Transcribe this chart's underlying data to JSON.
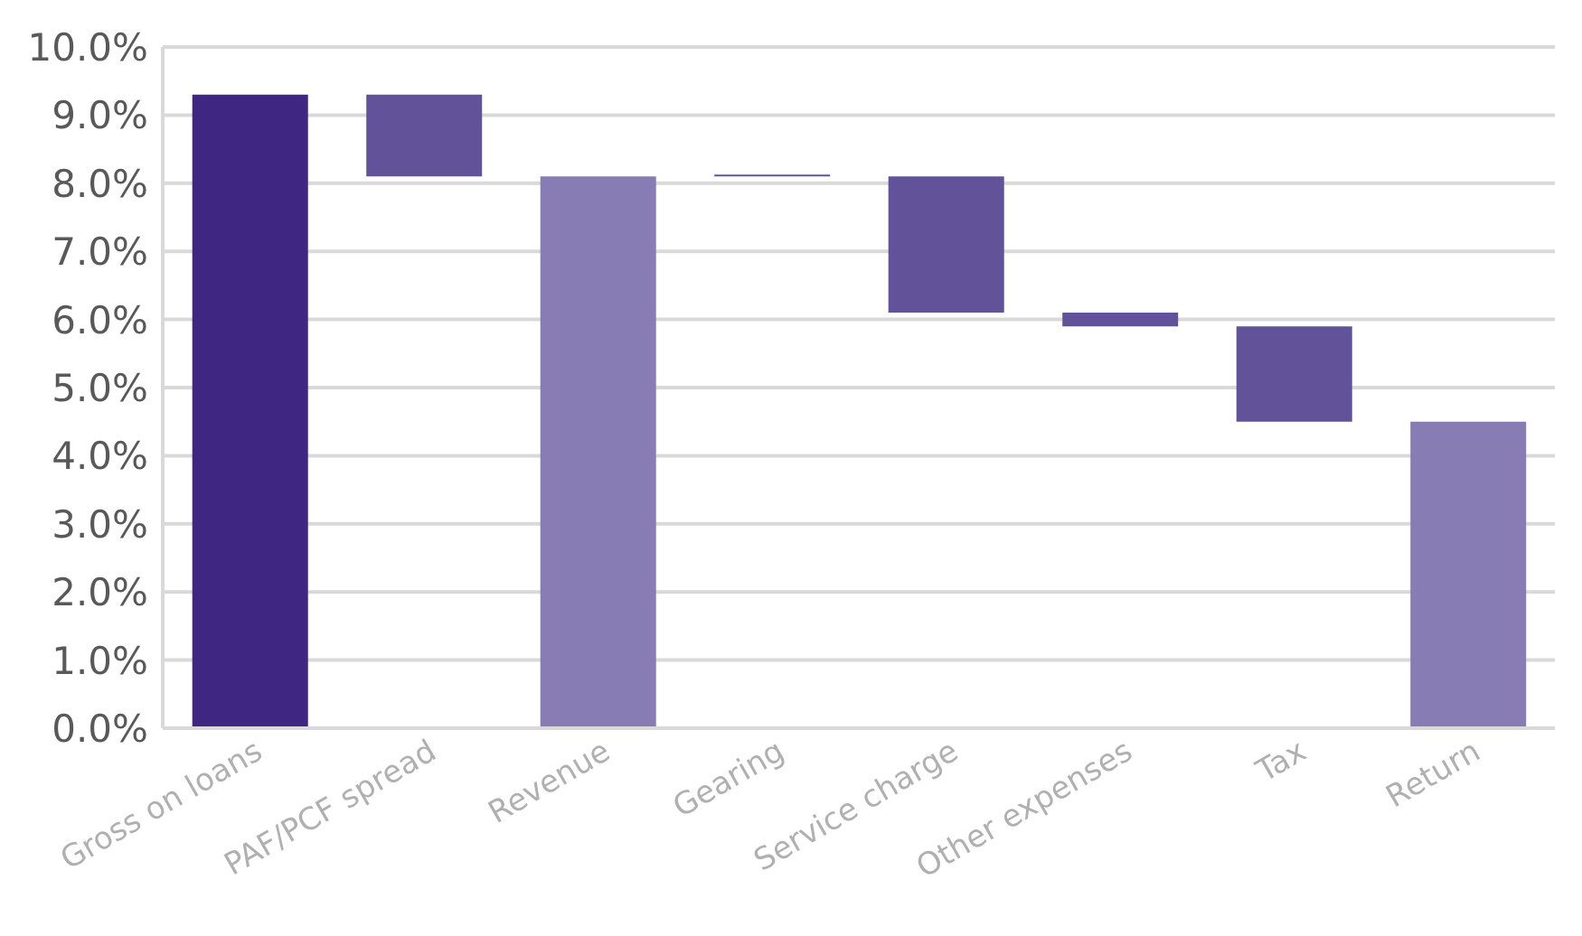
{
  "chart_data": {
    "type": "bar",
    "categories": [
      "Gross on loans",
      "PAF/PCF spread",
      "Revenue",
      "Gearing",
      "Service charge",
      "Other expenses",
      "Tax",
      "Return"
    ],
    "values": [
      9.3,
      -1.2,
      8.1,
      0.02,
      -2.0,
      -0.2,
      -1.4,
      4.5
    ],
    "base": [
      0,
      9.3,
      0,
      8.1,
      8.1,
      6.1,
      5.9,
      0
    ],
    "colors": [
      "#3f2682",
      "#62529a",
      "#877cb3",
      "#62529a",
      "#62529a",
      "#62529a",
      "#62529a",
      "#877cb3"
    ],
    "ylim": [
      0,
      10
    ],
    "yticks": [
      {
        "value": 0,
        "label": "0.0%"
      },
      {
        "value": 1,
        "label": "1.0%"
      },
      {
        "value": 2,
        "label": "2.0%"
      },
      {
        "value": 3,
        "label": "3.0%"
      },
      {
        "value": 4,
        "label": "4.0%"
      },
      {
        "value": 5,
        "label": "5.0%"
      },
      {
        "value": 6,
        "label": "6.0%"
      },
      {
        "value": 7,
        "label": "7.0%"
      },
      {
        "value": 8,
        "label": "8.0%"
      },
      {
        "value": 9,
        "label": "9.0%"
      },
      {
        "value": 10,
        "label": "10.0%"
      }
    ],
    "grid": "y"
  }
}
